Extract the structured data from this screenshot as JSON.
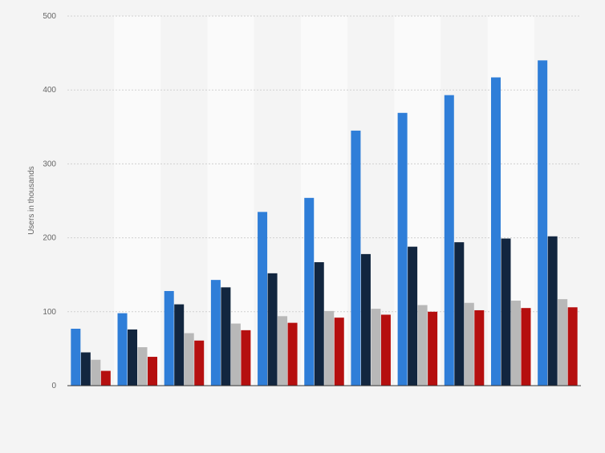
{
  "chart_data": {
    "type": "bar",
    "title": "",
    "xlabel": "",
    "ylabel": "Users in thousands",
    "ylim": [
      0,
      500
    ],
    "yticks": [
      0,
      100,
      200,
      300,
      400,
      500
    ],
    "grid": true,
    "legend": "none",
    "categories": [
      "",
      "",
      "",
      "",
      "",
      "",
      "",
      "",
      "",
      "",
      ""
    ],
    "series": [
      {
        "color": "#2f7ed8",
        "values": [
          77,
          98,
          128,
          143,
          235,
          254,
          345,
          369,
          393,
          417,
          440
        ]
      },
      {
        "color": "#12263f",
        "values": [
          45,
          76,
          110,
          133,
          152,
          167,
          178,
          188,
          194,
          199,
          202
        ]
      },
      {
        "color": "#b8b8b8",
        "values": [
          35,
          52,
          71,
          84,
          94,
          101,
          104,
          109,
          112,
          115,
          117
        ]
      },
      {
        "color": "#b50f0f",
        "values": [
          20,
          39,
          61,
          75,
          85,
          92,
          96,
          100,
          102,
          105,
          106
        ]
      }
    ]
  }
}
